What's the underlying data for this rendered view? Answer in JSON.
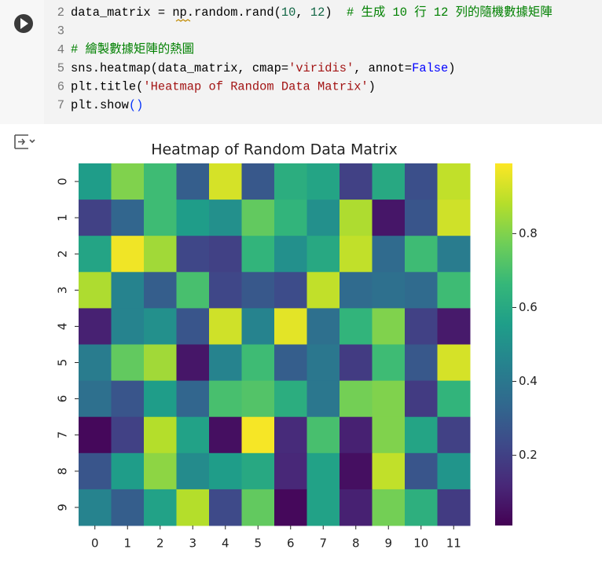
{
  "code": {
    "line_numbers": [
      "2",
      "3",
      "4",
      "5",
      "6",
      "7"
    ],
    "lines": [
      [
        {
          "text": "data_matrix = ",
          "color": "#000000"
        },
        {
          "text": "np",
          "color": "#000000"
        },
        {
          "text": ".random.rand(",
          "color": "#000000"
        },
        {
          "text": "10",
          "color": "#116644"
        },
        {
          "text": ", ",
          "color": "#000000"
        },
        {
          "text": "12",
          "color": "#116644"
        },
        {
          "text": ")",
          "color": "#000000"
        },
        {
          "text": "  # 生成 10 行 12 列的隨機數據矩陣",
          "color": "#008000"
        }
      ],
      [],
      [
        {
          "text": "# 繪製數據矩陣的熱圖",
          "color": "#008000"
        }
      ],
      [
        {
          "text": "sns.heatmap(data_matrix, cmap=",
          "color": "#000000"
        },
        {
          "text": "'viridis'",
          "color": "#a31515"
        },
        {
          "text": ", annot=",
          "color": "#000000"
        },
        {
          "text": "False",
          "color": "#0000ff"
        },
        {
          "text": ")",
          "color": "#000000"
        }
      ],
      [
        {
          "text": "plt.title(",
          "color": "#000000"
        },
        {
          "text": "'Heatmap of Random Data Matrix'",
          "color": "#a31515"
        },
        {
          "text": ")",
          "color": "#000000"
        }
      ],
      [
        {
          "text": "plt.show",
          "color": "#000000"
        },
        {
          "text": "()",
          "color": "#0431fa"
        }
      ]
    ]
  },
  "chart_data": {
    "type": "heatmap",
    "title": "Heatmap of Random Data Matrix",
    "categories": [
      0,
      1,
      2,
      3,
      4,
      5,
      6,
      7,
      8,
      9,
      10,
      11
    ],
    "rows": [
      0,
      1,
      2,
      3,
      4,
      5,
      6,
      7,
      8,
      9
    ],
    "values": [
      [
        0.55,
        0.8,
        0.68,
        0.3,
        0.93,
        0.28,
        0.62,
        0.58,
        0.2,
        0.6,
        0.25,
        0.9
      ],
      [
        0.2,
        0.33,
        0.68,
        0.55,
        0.5,
        0.75,
        0.65,
        0.5,
        0.87,
        0.07,
        0.27,
        0.92
      ],
      [
        0.58,
        0.97,
        0.85,
        0.22,
        0.2,
        0.65,
        0.5,
        0.6,
        0.9,
        0.35,
        0.68,
        0.42
      ],
      [
        0.87,
        0.45,
        0.3,
        0.7,
        0.22,
        0.28,
        0.24,
        0.9,
        0.35,
        0.37,
        0.35,
        0.68
      ],
      [
        0.1,
        0.45,
        0.5,
        0.27,
        0.92,
        0.45,
        0.95,
        0.37,
        0.65,
        0.8,
        0.2,
        0.08
      ],
      [
        0.42,
        0.75,
        0.85,
        0.07,
        0.45,
        0.68,
        0.3,
        0.4,
        0.18,
        0.68,
        0.28,
        0.93
      ],
      [
        0.37,
        0.27,
        0.55,
        0.33,
        0.7,
        0.72,
        0.62,
        0.4,
        0.78,
        0.8,
        0.18,
        0.65
      ],
      [
        0.03,
        0.2,
        0.88,
        0.57,
        0.05,
        0.98,
        0.13,
        0.7,
        0.1,
        0.8,
        0.58,
        0.2
      ],
      [
        0.27,
        0.55,
        0.82,
        0.48,
        0.55,
        0.6,
        0.12,
        0.57,
        0.05,
        0.9,
        0.27,
        0.52
      ],
      [
        0.45,
        0.3,
        0.57,
        0.88,
        0.23,
        0.75,
        0.03,
        0.57,
        0.1,
        0.78,
        0.63,
        0.18
      ]
    ],
    "colormap": "viridis",
    "colormap_colors": [
      "#440154",
      "#482878",
      "#3e4989",
      "#31688e",
      "#26828e",
      "#1f9e89",
      "#35b779",
      "#6ece58",
      "#b5de2b",
      "#fde725"
    ],
    "zlim": [
      0.01,
      0.99
    ],
    "zticks": [
      0.2,
      0.4,
      0.6,
      0.8
    ]
  }
}
